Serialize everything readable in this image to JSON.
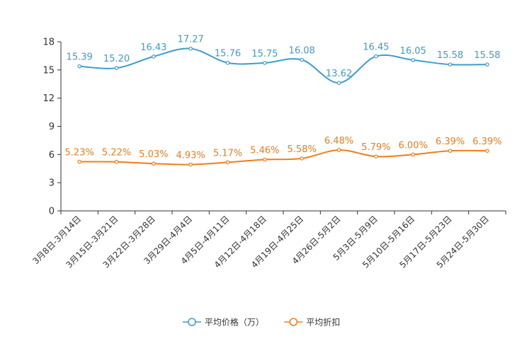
{
  "chart_data": {
    "type": "line",
    "title": "",
    "xlabel": "",
    "ylabel": "",
    "ylim": [
      0,
      18
    ],
    "yticks": [
      0,
      3,
      6,
      9,
      12,
      15,
      18
    ],
    "grid": false,
    "legend_position": "bottom-center",
    "categories": [
      "3月8日-3月14日",
      "3月15日-3月21日",
      "3月22日-3月28日",
      "3月29日-4月4日",
      "4月5日-4月11日",
      "4月12日-4月18日",
      "4月19日-4月25日",
      "4月26日-5月2日",
      "5月3日-5月9日",
      "5月10日-5月16日",
      "5月17日-5月23日",
      "5月24日-5月30日"
    ],
    "series": [
      {
        "name": "平均价格（万）",
        "color": "#3c9dcf",
        "values": [
          15.39,
          15.2,
          16.43,
          17.27,
          15.76,
          15.75,
          16.08,
          13.62,
          16.45,
          16.05,
          15.58,
          15.58
        ],
        "labels": [
          "15.39",
          "15.20",
          "16.43",
          "17.27",
          "15.76",
          "15.75",
          "16.08",
          "13.62",
          "16.45",
          "16.05",
          "15.58",
          "15.58"
        ]
      },
      {
        "name": "平均折扣",
        "color": "#f07d1a",
        "values": [
          5.23,
          5.22,
          5.03,
          4.93,
          5.17,
          5.46,
          5.58,
          6.48,
          5.79,
          6.0,
          6.39,
          6.39
        ],
        "labels": [
          "5.23%",
          "5.22%",
          "5.03%",
          "4.93%",
          "5.17%",
          "5.46%",
          "5.58%",
          "6.48%",
          "5.79%",
          "6.00%",
          "6.39%",
          "6.39%"
        ]
      }
    ]
  }
}
